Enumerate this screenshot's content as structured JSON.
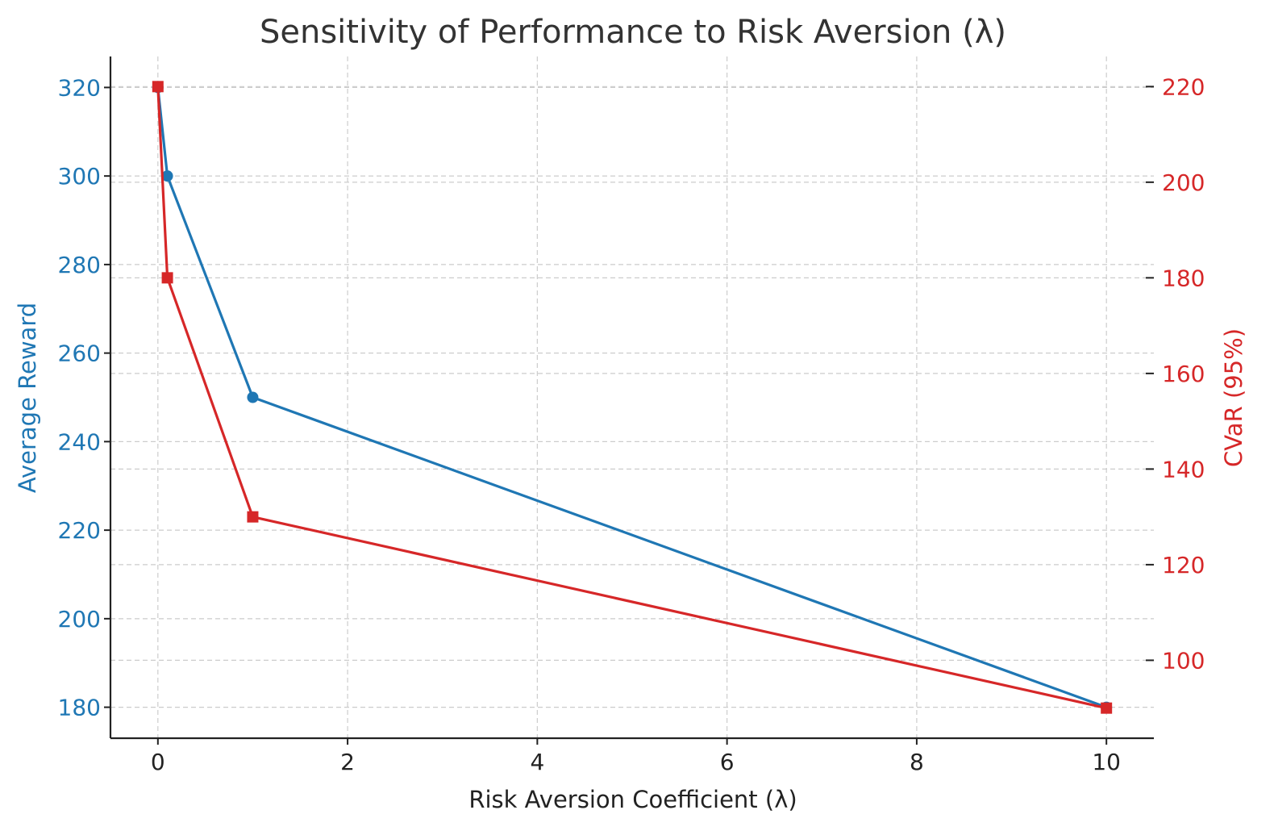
{
  "chart_data": {
    "type": "line",
    "title": "Sensitivity of Performance to Risk Aversion (λ)",
    "xlabel": "Risk Aversion Coefficient (λ)",
    "ylabel_left": "Average Reward",
    "ylabel_right": "CVaR (95%)",
    "xlim": [
      -0.5,
      10.5
    ],
    "ylim_left": [
      173,
      327
    ],
    "ylim_right": [
      83.7,
      226.3
    ],
    "x_ticks": [
      0,
      2,
      4,
      6,
      8,
      10
    ],
    "y_left_ticks": [
      180,
      200,
      220,
      240,
      260,
      280,
      300,
      320
    ],
    "y_right_ticks": [
      100,
      120,
      140,
      160,
      180,
      200,
      220
    ],
    "grid": true,
    "series": [
      {
        "name": "Average Reward",
        "axis": "left",
        "color": "#1f77b4",
        "marker": "circle",
        "x": [
          0,
          0.1,
          1,
          10
        ],
        "values": [
          320,
          300,
          250,
          180
        ]
      },
      {
        "name": "CVaR (95%)",
        "axis": "right",
        "color": "#d62728",
        "marker": "square",
        "x": [
          0,
          0.1,
          1,
          10
        ],
        "values": [
          220,
          180,
          130,
          90
        ]
      }
    ],
    "colors": {
      "left_axis": "#1f77b4",
      "right_axis": "#d62728",
      "text": "#222222"
    }
  }
}
